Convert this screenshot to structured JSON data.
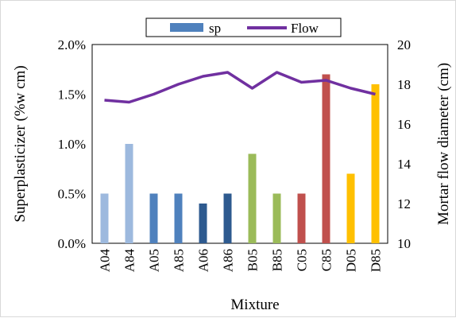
{
  "chart_data": {
    "type": "bar+line",
    "categories": [
      "A04",
      "A84",
      "A05",
      "A85",
      "A06",
      "A86",
      "B05",
      "B85",
      "C05",
      "C85",
      "D05",
      "D85"
    ],
    "series": [
      {
        "name": "sp",
        "type": "bar",
        "axis": "left",
        "values": [
          0.005,
          0.01,
          0.005,
          0.005,
          0.004,
          0.005,
          0.009,
          0.005,
          0.005,
          0.017,
          0.007,
          0.016
        ],
        "colors": [
          "#9DB9DE",
          "#9DB9DE",
          "#4F81BD",
          "#4F81BD",
          "#2E5A8F",
          "#2E5A8F",
          "#9BBB59",
          "#9BBB59",
          "#C0504D",
          "#C0504D",
          "#FFC000",
          "#FFC000"
        ]
      },
      {
        "name": "Flow",
        "type": "line",
        "axis": "right",
        "values": [
          17.2,
          17.1,
          17.5,
          18.0,
          18.4,
          18.6,
          17.8,
          18.6,
          18.1,
          18.2,
          17.8,
          17.5
        ],
        "color": "#7030A0"
      }
    ],
    "xlabel": "Mixture",
    "ylabel": "Superplasticizer (%w cm)",
    "y2label": "Mortar flow diameter (cm)",
    "ylim": [
      0,
      0.02
    ],
    "y2lim": [
      10,
      20
    ],
    "yticks": [
      "0.0%",
      "0.5%",
      "1.0%",
      "1.5%",
      "2.0%"
    ],
    "y2ticks": [
      "10",
      "12",
      "14",
      "16",
      "18",
      "20"
    ],
    "legend": {
      "placement": "top-center",
      "bar_label": "sp",
      "line_label": "Flow",
      "bar_color": "#4F81BD"
    },
    "grid": false
  }
}
